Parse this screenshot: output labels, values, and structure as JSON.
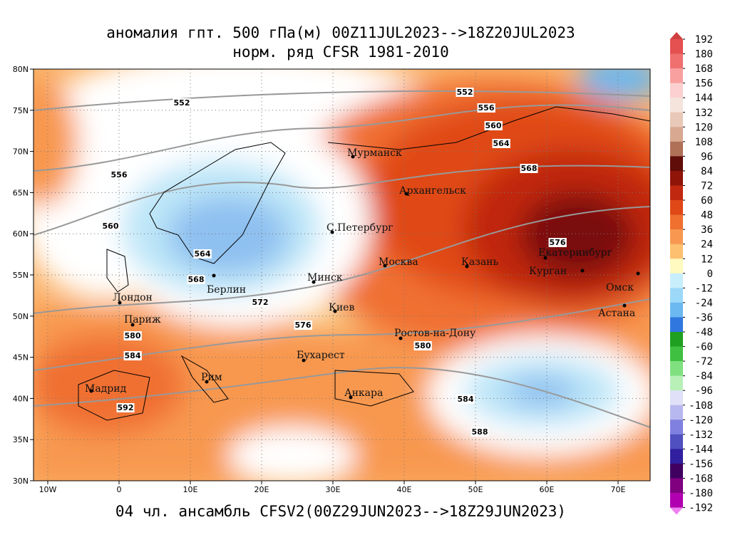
{
  "title": "аномалия гпт. 500 гПа(м) 00Z11JUL2023-->18Z20JUL2023",
  "subtitle": "норм. ряд CFSR 1981-2010",
  "footer": "04 чл. ансамбль CFSV2(00Z29JUN2023-->18Z29JUN2023)",
  "lon_labels": [
    "10W",
    "0",
    "10E",
    "20E",
    "30E",
    "40E",
    "50E",
    "60E",
    "70E"
  ],
  "lat_labels": [
    "80N",
    "75N",
    "70N",
    "65N",
    "60N",
    "55N",
    "50N",
    "45N",
    "40N",
    "35N",
    "30N"
  ],
  "cities": [
    "Мурманск",
    "Архангельск",
    "С.Петербург",
    "Москва",
    "Казань",
    "Екатеринбург",
    "Курган",
    "Омск",
    "Астана",
    "Минск",
    "Берлин",
    "Лондон",
    "Париж",
    "Киев",
    "Ростов-на-Дону",
    "Бухарест",
    "Рим",
    "Мадрид",
    "Анкара"
  ],
  "contour_labels": [
    552,
    552,
    556,
    560,
    564,
    568,
    556,
    560,
    564,
    568,
    572,
    576,
    576,
    580,
    580,
    584,
    584,
    588,
    592
  ],
  "colorbar": {
    "levels": [
      192,
      180,
      168,
      156,
      144,
      132,
      120,
      108,
      96,
      84,
      72,
      60,
      48,
      36,
      24,
      12,
      0,
      -12,
      -24,
      -36,
      -48,
      -60,
      -72,
      -84,
      -96,
      -108,
      -120,
      -132,
      -144,
      -156,
      -168,
      -180,
      -192
    ],
    "colors": [
      "#d04040",
      "#e55050",
      "#f07070",
      "#f8a0a0",
      "#fcd0d0",
      "#f4e4dc",
      "#e8c8b8",
      "#d8a890",
      "#b07058",
      "#600c08",
      "#901408",
      "#c02810",
      "#e04818",
      "#f07030",
      "#f89850",
      "#fcc070",
      "#fffac0",
      "#c8eefc",
      "#9cd8f8",
      "#6cb8f0",
      "#3078e0",
      "#20a020",
      "#40c040",
      "#80e080",
      "#b8f0b8",
      "#e0e0f8",
      "#b8b8f0",
      "#8080e0",
      "#5050c0",
      "#3020a0",
      "#400060",
      "#800080",
      "#b000b0",
      "#f080f0"
    ]
  }
}
